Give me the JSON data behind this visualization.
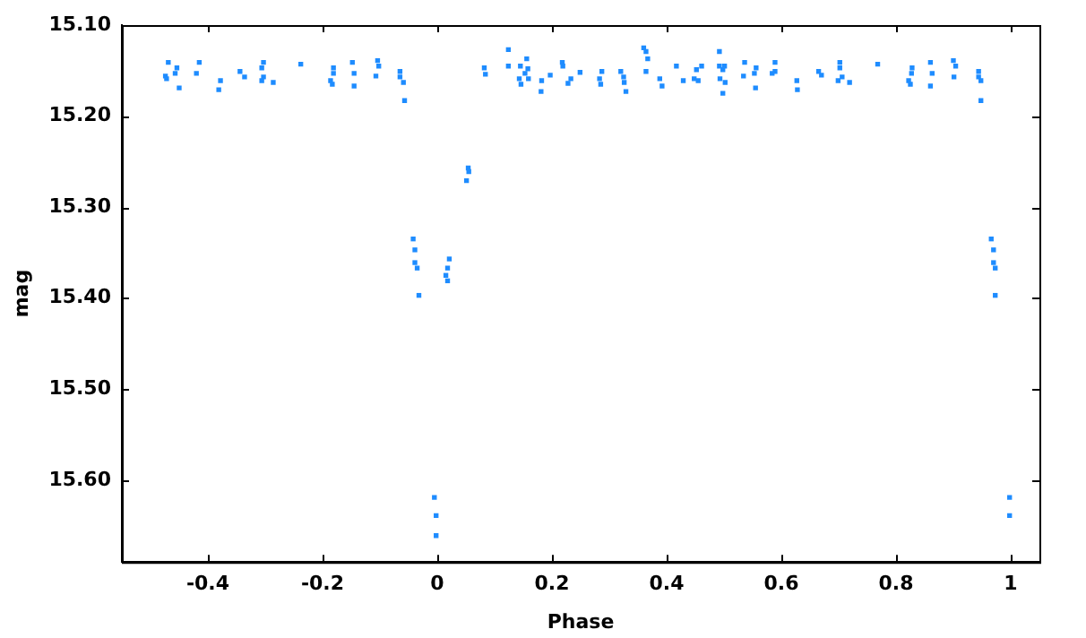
{
  "chart_data": {
    "type": "scatter",
    "xlabel": "Phase",
    "ylabel": "mag",
    "xlim": [
      -0.55,
      1.05
    ],
    "ylim": [
      15.69,
      15.1
    ],
    "xticks": [
      {
        "value": -0.4,
        "label": "-0.4"
      },
      {
        "value": -0.2,
        "label": "-0.2"
      },
      {
        "value": 0,
        "label": "0"
      },
      {
        "value": 0.2,
        "label": "0.2"
      },
      {
        "value": 0.4,
        "label": "0.4"
      },
      {
        "value": 0.6,
        "label": "0.6"
      },
      {
        "value": 0.8,
        "label": "0.8"
      },
      {
        "value": 1,
        "label": "1"
      }
    ],
    "yticks": [
      {
        "value": 15.1,
        "label": "15.10"
      },
      {
        "value": 15.2,
        "label": "15.20"
      },
      {
        "value": 15.3,
        "label": "15.30"
      },
      {
        "value": 15.4,
        "label": "15.40"
      },
      {
        "value": 15.5,
        "label": "15.50"
      },
      {
        "value": 15.6,
        "label": "15.60"
      }
    ],
    "grid": false,
    "legend": false,
    "marker": "square",
    "series": [
      {
        "color": "#1e8cff",
        "x": [
          -0.474,
          -0.469,
          -0.472,
          -0.454,
          -0.457,
          -0.45,
          -0.415,
          -0.42,
          -0.378,
          -0.381,
          -0.344,
          -0.336,
          -0.303,
          -0.306,
          -0.303,
          -0.306,
          -0.286,
          -0.238,
          -0.181,
          -0.181,
          -0.186,
          -0.183,
          -0.148,
          -0.145,
          -0.145,
          -0.104,
          -0.102,
          -0.107,
          -0.065,
          -0.065,
          -0.059,
          -0.057,
          -0.042,
          -0.039,
          -0.039,
          -0.035,
          -0.032,
          -0.005,
          -0.002,
          -0.002,
          0.015,
          0.018,
          0.018,
          0.021,
          0.051,
          0.054,
          0.055,
          0.082,
          0.084,
          0.124,
          0.124,
          0.143,
          0.145,
          0.146,
          0.153,
          0.156,
          0.158,
          0.159,
          0.181,
          0.182,
          0.197,
          0.218,
          0.219,
          0.228,
          0.233,
          0.249,
          0.283,
          0.285,
          0.287,
          0.32,
          0.325,
          0.326,
          0.329,
          0.36,
          0.364,
          0.364,
          0.367,
          0.388,
          0.392,
          0.417,
          0.429,
          0.448,
          0.452,
          0.455,
          0.461,
          0.492,
          0.492,
          0.493,
          0.498,
          0.498,
          0.501,
          0.502,
          0.534,
          0.536,
          0.553,
          0.555,
          0.556,
          0.584,
          0.589,
          0.589,
          0.627,
          0.628,
          0.665,
          0.67,
          0.699,
          0.702,
          0.702,
          0.706,
          0.719,
          0.768,
          0.822,
          0.825,
          0.827,
          0.828,
          0.86,
          0.86,
          0.863,
          0.9,
          0.901,
          0.904,
          0.944,
          0.944,
          0.948,
          0.948,
          0.966,
          0.97,
          0.97,
          0.973,
          0.973,
          0.998,
          0.998
        ],
        "values": [
          15.156,
          15.141,
          15.159,
          15.147,
          15.153,
          15.169,
          15.141,
          15.153,
          15.161,
          15.171,
          15.151,
          15.157,
          15.141,
          15.147,
          15.157,
          15.161,
          15.163,
          15.143,
          15.147,
          15.153,
          15.161,
          15.165,
          15.141,
          15.153,
          15.167,
          15.139,
          15.145,
          15.156,
          15.151,
          15.157,
          15.163,
          15.183,
          15.335,
          15.347,
          15.361,
          15.367,
          15.397,
          15.619,
          15.639,
          15.661,
          15.375,
          15.367,
          15.381,
          15.357,
          15.271,
          15.257,
          15.261,
          15.147,
          15.154,
          15.127,
          15.145,
          15.159,
          15.145,
          15.165,
          15.153,
          15.137,
          15.148,
          15.159,
          15.173,
          15.161,
          15.155,
          15.141,
          15.145,
          15.164,
          15.159,
          15.152,
          15.159,
          15.165,
          15.151,
          15.151,
          15.157,
          15.163,
          15.173,
          15.125,
          15.129,
          15.151,
          15.137,
          15.159,
          15.167,
          15.145,
          15.161,
          15.159,
          15.149,
          15.161,
          15.145,
          15.129,
          15.145,
          15.159,
          15.149,
          15.175,
          15.145,
          15.163,
          15.156,
          15.141,
          15.153,
          15.169,
          15.147,
          15.153,
          15.141,
          15.151,
          15.161,
          15.171,
          15.151,
          15.155,
          15.161,
          15.141,
          15.147,
          15.157,
          15.163,
          15.143,
          15.161,
          15.165,
          15.153,
          15.147,
          15.141,
          15.167,
          15.153,
          15.139,
          15.157,
          15.145,
          15.151,
          15.157,
          15.161,
          15.183,
          15.335,
          15.347,
          15.361,
          15.367,
          15.397,
          15.619,
          15.639
        ]
      }
    ]
  }
}
